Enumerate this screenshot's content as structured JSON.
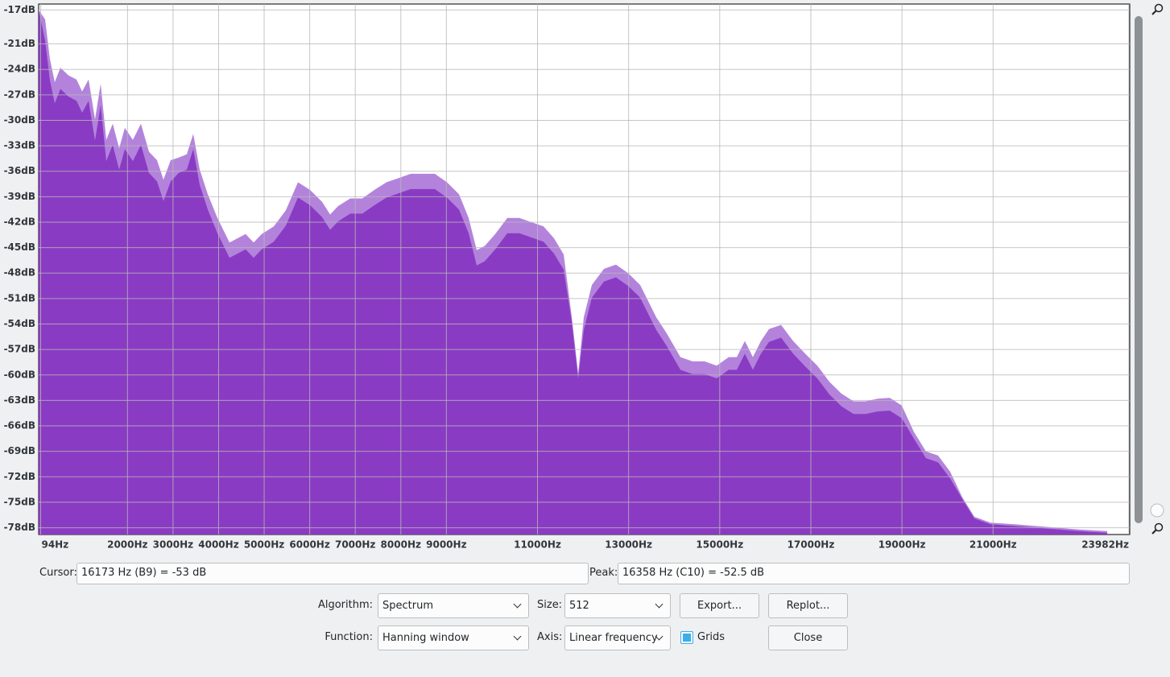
{
  "chart_data": {
    "type": "area",
    "x": [
      50,
      191,
      297,
      404,
      527,
      704,
      881,
      1005,
      1146,
      1288,
      1411,
      1535,
      1676,
      1818,
      1941,
      2118,
      2295,
      2471,
      2648,
      2790,
      2949,
      3126,
      3302,
      3444,
      3585,
      3762,
      3974,
      4239,
      4416,
      4593,
      4770,
      4946,
      5211,
      5476,
      5742,
      6006,
      6271,
      6448,
      6625,
      6890,
      7155,
      7420,
      7686,
      7951,
      8216,
      8481,
      8746,
      9011,
      9277,
      9489,
      9665,
      9842,
      10072,
      10337,
      10602,
      10867,
      11132,
      11362,
      11574,
      11751,
      11893,
      12016,
      12193,
      12458,
      12723,
      12988,
      13253,
      13430,
      13607,
      13837,
      14137,
      14402,
      14667,
      14932,
      15197,
      15374,
      15551,
      15728,
      15905,
      16081,
      16346,
      16611,
      16877,
      17142,
      17407,
      17672,
      17937,
      18202,
      18467,
      18732,
      18997,
      19262,
      19527,
      19793,
      20058,
      20323,
      20588,
      20942,
      21472,
      22179,
      22886,
      23505
    ],
    "series": [
      {
        "color": "#b383dc",
        "values": [
          -17.0,
          -18.1,
          -22.8,
          -25.5,
          -23.8,
          -24.7,
          -25.2,
          -26.6,
          -25.2,
          -29.9,
          -25.7,
          -32.3,
          -30.4,
          -33.3,
          -30.9,
          -32.3,
          -30.4,
          -33.7,
          -34.7,
          -37.0,
          -34.7,
          -34.4,
          -34.0,
          -31.6,
          -35.8,
          -38.7,
          -41.5,
          -44.4,
          -43.9,
          -43.4,
          -44.4,
          -43.4,
          -42.5,
          -40.6,
          -37.3,
          -38.2,
          -39.6,
          -41.1,
          -40.1,
          -39.2,
          -39.2,
          -38.2,
          -37.3,
          -36.8,
          -36.3,
          -36.3,
          -36.3,
          -37.3,
          -38.7,
          -41.5,
          -45.3,
          -44.8,
          -43.4,
          -41.5,
          -41.5,
          -42.0,
          -42.5,
          -43.9,
          -45.8,
          -53.1,
          -59.8,
          -53.2,
          -49.4,
          -47.5,
          -47.0,
          -48.0,
          -49.4,
          -51.3,
          -53.2,
          -55.1,
          -57.9,
          -58.4,
          -58.4,
          -58.9,
          -57.9,
          -57.9,
          -56.0,
          -57.9,
          -56.0,
          -54.6,
          -54.1,
          -56.0,
          -57.5,
          -58.9,
          -60.8,
          -62.2,
          -63.1,
          -63.1,
          -62.8,
          -62.7,
          -63.6,
          -66.7,
          -69.0,
          -69.5,
          -71.4,
          -74.4,
          -76.7,
          -77.4,
          -77.6,
          -77.9,
          -78.2,
          -78.4
        ]
      },
      {
        "color": "#8a3bc3",
        "values": [
          -17.0,
          -20.6,
          -25.3,
          -28.0,
          -26.3,
          -27.2,
          -27.7,
          -29.1,
          -27.7,
          -32.4,
          -28.2,
          -34.8,
          -32.9,
          -35.8,
          -33.4,
          -34.8,
          -32.9,
          -36.2,
          -37.2,
          -39.5,
          -37.2,
          -36.2,
          -35.8,
          -33.4,
          -37.6,
          -40.5,
          -43.3,
          -46.2,
          -45.7,
          -45.2,
          -46.2,
          -45.2,
          -44.3,
          -42.4,
          -39.1,
          -40.0,
          -41.4,
          -42.9,
          -41.9,
          -41.0,
          -41.0,
          -40.0,
          -39.1,
          -38.6,
          -38.1,
          -38.1,
          -38.1,
          -39.1,
          -40.5,
          -43.3,
          -47.1,
          -46.6,
          -45.2,
          -43.3,
          -43.3,
          -43.8,
          -44.3,
          -45.7,
          -47.6,
          -53.7,
          -60.4,
          -54.7,
          -50.9,
          -49.0,
          -48.5,
          -49.5,
          -50.9,
          -52.8,
          -54.7,
          -56.6,
          -59.4,
          -59.9,
          -59.9,
          -60.4,
          -59.4,
          -59.4,
          -57.5,
          -59.4,
          -57.5,
          -56.1,
          -55.6,
          -57.5,
          -59.0,
          -60.4,
          -62.3,
          -63.7,
          -64.6,
          -64.6,
          -64.3,
          -64.2,
          -65.1,
          -67.5,
          -69.8,
          -70.3,
          -72.2,
          -74.6,
          -76.9,
          -77.6,
          -77.8,
          -78.1,
          -78.4,
          -78.6
        ]
      }
    ],
    "xlim": [
      50,
      24000
    ],
    "ylim": [
      -78.8,
      -16.3
    ],
    "grid": true,
    "xticks": [
      {
        "value": 94,
        "label": "94Hz"
      },
      {
        "value": 2000,
        "label": "2000Hz"
      },
      {
        "value": 3000,
        "label": "3000Hz"
      },
      {
        "value": 4000,
        "label": "4000Hz"
      },
      {
        "value": 5000,
        "label": "5000Hz"
      },
      {
        "value": 6000,
        "label": "6000Hz"
      },
      {
        "value": 7000,
        "label": "7000Hz"
      },
      {
        "value": 8000,
        "label": "8000Hz"
      },
      {
        "value": 9000,
        "label": "9000Hz"
      },
      {
        "value": 11000,
        "label": "11000Hz"
      },
      {
        "value": 13000,
        "label": "13000Hz"
      },
      {
        "value": 15000,
        "label": "15000Hz"
      },
      {
        "value": 17000,
        "label": "17000Hz"
      },
      {
        "value": 19000,
        "label": "19000Hz"
      },
      {
        "value": 21000,
        "label": "21000Hz"
      },
      {
        "value": 23982,
        "label": "23982Hz"
      }
    ],
    "yticks": [
      {
        "value": -17,
        "label": "-17dB"
      },
      {
        "value": -21,
        "label": "-21dB"
      },
      {
        "value": -24,
        "label": "-24dB"
      },
      {
        "value": -27,
        "label": "-27dB"
      },
      {
        "value": -30,
        "label": "-30dB"
      },
      {
        "value": -33,
        "label": "-33dB"
      },
      {
        "value": -36,
        "label": "-36dB"
      },
      {
        "value": -39,
        "label": "-39dB"
      },
      {
        "value": -42,
        "label": "-42dB"
      },
      {
        "value": -45,
        "label": "-45dB"
      },
      {
        "value": -48,
        "label": "-48dB"
      },
      {
        "value": -51,
        "label": "-51dB"
      },
      {
        "value": -54,
        "label": "-54dB"
      },
      {
        "value": -57,
        "label": "-57dB"
      },
      {
        "value": -60,
        "label": "-60dB"
      },
      {
        "value": -63,
        "label": "-63dB"
      },
      {
        "value": -66,
        "label": "-66dB"
      },
      {
        "value": -69,
        "label": "-69dB"
      },
      {
        "value": -72,
        "label": "-72dB"
      },
      {
        "value": -75,
        "label": "-75dB"
      },
      {
        "value": -78,
        "label": "-78dB"
      }
    ]
  },
  "controls": {
    "cursor_label": "Cursor:",
    "cursor_value": "16173 Hz (B9) = -53 dB",
    "peak_label": "Peak:",
    "peak_value": "16358 Hz (C10) = -52.5 dB",
    "algorithm_label": "Algorithm:",
    "algorithm": "Spectrum",
    "size_label": "Size:",
    "size": "512",
    "export": "Export...",
    "replot": "Replot...",
    "function_label": "Function:",
    "function": "Hanning window",
    "axis_label": "Axis:",
    "axis": "Linear frequency",
    "grids_label": "Grids",
    "grids_checked": true,
    "close": "Close"
  }
}
